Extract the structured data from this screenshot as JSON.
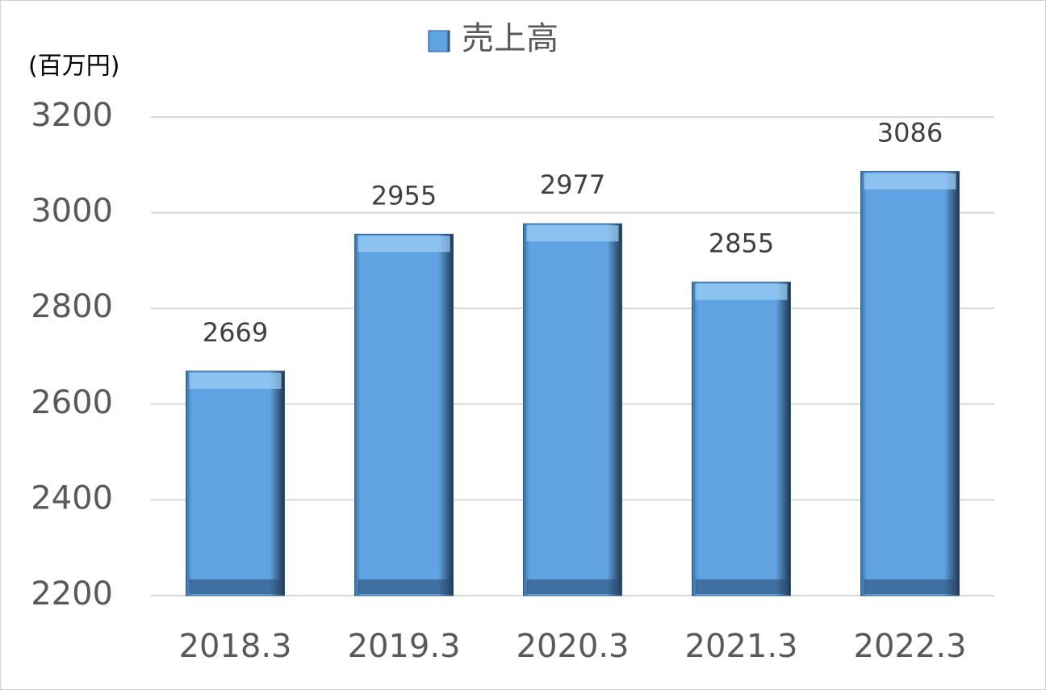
{
  "chart_data": {
    "type": "bar",
    "y_label": "(百万円)",
    "categories": [
      "2018.3",
      "2019.3",
      "2020.3",
      "2021.3",
      "2022.3"
    ],
    "series": [
      {
        "name": "売上高",
        "color": "#5b9bd5",
        "values": [
          2669,
          2955,
          2977,
          2855,
          3086
        ]
      }
    ],
    "ylim": [
      2200,
      3200
    ],
    "yticks": [
      2200,
      2400,
      2600,
      2800,
      3000,
      3200
    ],
    "grid": true,
    "legend": "top"
  }
}
